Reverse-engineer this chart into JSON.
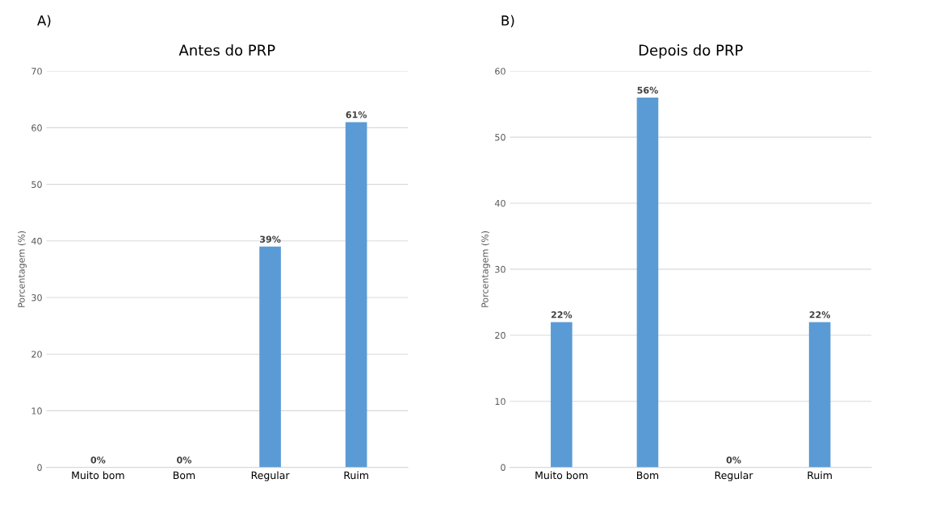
{
  "chart_data": [
    {
      "type": "bar",
      "title": "Antes do PRP",
      "ylabel": "Porcentagem (%)",
      "annotations": [
        "A)"
      ],
      "categories": [
        "Muito bom",
        "Bom",
        "Regular",
        "Ruim"
      ],
      "values": [
        0,
        0,
        39,
        61
      ],
      "color": "#5b9bd5",
      "value_labels": [
        "0%",
        "0%",
        "39%",
        "61%"
      ],
      "ylim": [
        0,
        70
      ],
      "yticks": [
        0,
        10,
        20,
        30,
        40,
        50,
        60,
        70
      ],
      "grid": "y"
    },
    {
      "type": "bar",
      "title": "Depois do PRP",
      "ylabel": "Porcentagem (%)",
      "annotations": [
        "B)"
      ],
      "categories": [
        "Muito bom",
        "Bom",
        "Regular",
        "Ruim"
      ],
      "values": [
        22,
        56,
        0,
        22
      ],
      "color": "#5b9bd5",
      "value_labels": [
        "22%",
        "56%",
        "0%",
        "22%"
      ],
      "ylim": [
        0,
        60
      ],
      "yticks": [
        0,
        10,
        20,
        30,
        40,
        50,
        60
      ],
      "grid": "y"
    }
  ]
}
